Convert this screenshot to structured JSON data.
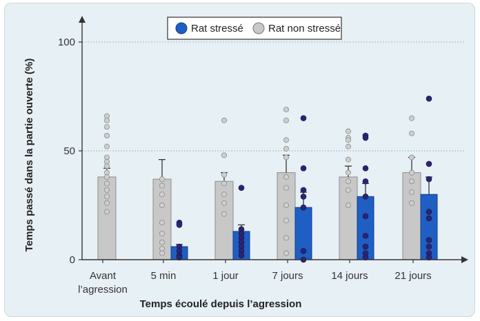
{
  "chart_data": {
    "type": "bar",
    "xlabel": "Temps écoulé depuis l’agression",
    "ylabel": "Temps passé dans la partie ouverte (%)",
    "ylim": [
      0,
      100
    ],
    "yticks": [
      0,
      50,
      100
    ],
    "grid": true,
    "legend_position": "top-right",
    "categories": [
      [
        "Avant",
        "l’agression"
      ],
      [
        "5 min"
      ],
      [
        "1 jour"
      ],
      [
        "7 jours"
      ],
      [
        "14 jours"
      ],
      [
        "21 jours"
      ]
    ],
    "series": [
      {
        "name": "Rat non stressé",
        "color": "#c8c8c8",
        "values": [
          38,
          37,
          36,
          40,
          38,
          40
        ],
        "errors": [
          4,
          9,
          4,
          8,
          5,
          7
        ],
        "points": [
          [
            66,
            64,
            61,
            57,
            52,
            47,
            45,
            43,
            40,
            38,
            35,
            32,
            29,
            26,
            22
          ],
          [
            37,
            34,
            30,
            25,
            17,
            12,
            8,
            5,
            3
          ],
          [
            64,
            48,
            39,
            35,
            30,
            26,
            21
          ],
          [
            69,
            64,
            55,
            51,
            47,
            38,
            33,
            25,
            18,
            10,
            3
          ],
          [
            59,
            56,
            55,
            52,
            46,
            40,
            36,
            32,
            25
          ],
          [
            65,
            58,
            47,
            40,
            36,
            31,
            26
          ]
        ]
      },
      {
        "name": "Rat stressé",
        "color": "#1f5fc4",
        "values": [
          null,
          6,
          13,
          24,
          29,
          30
        ],
        "errors": [
          null,
          1,
          3,
          7,
          6,
          8
        ],
        "points": [
          null,
          [
            17,
            16,
            6,
            4,
            2,
            1
          ],
          [
            33,
            14,
            12,
            10,
            8,
            6,
            4,
            2
          ],
          [
            65,
            42,
            32,
            29,
            24,
            4,
            0
          ],
          [
            57,
            56,
            42,
            36,
            29,
            20,
            11,
            6,
            3,
            1
          ],
          [
            74,
            44,
            37,
            22,
            19,
            9,
            6,
            3,
            1
          ]
        ]
      }
    ]
  }
}
